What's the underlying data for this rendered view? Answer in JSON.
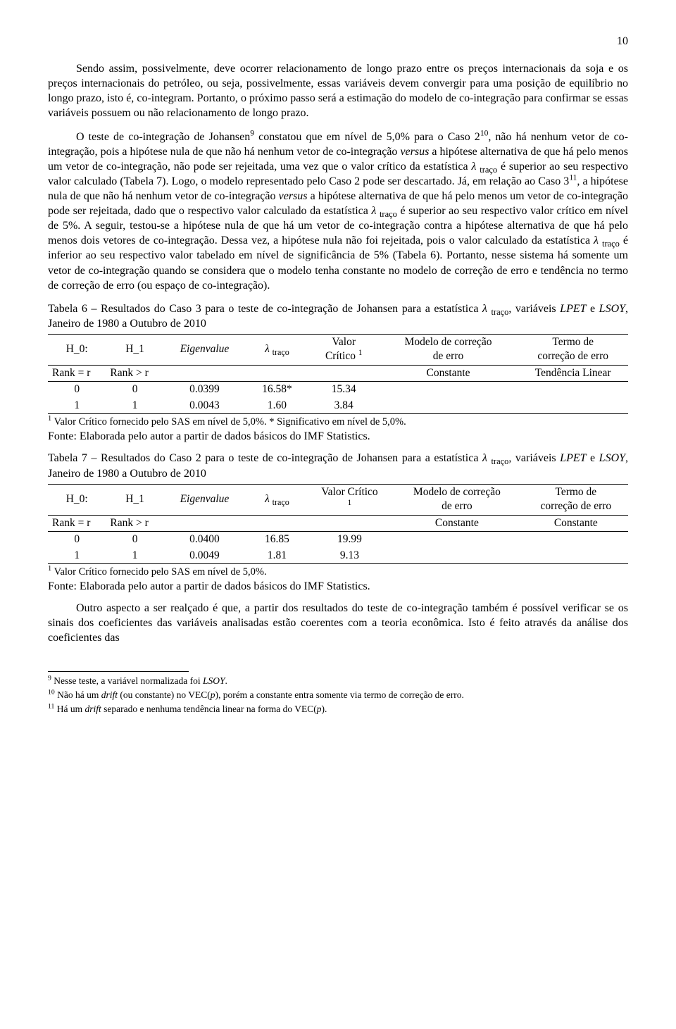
{
  "page_number": "10",
  "paragraphs": {
    "p1_html": "Sendo assim, possivelmente, deve ocorrer relacionamento de longo prazo entre os preços internacionais da soja e os preços internacionais do petróleo, ou seja, possivelmente, essas variáveis devem convergir para uma posição de equilíbrio no longo prazo, isto é, co-integram. Portanto, o próximo passo será a estimação do modelo de co-integração para confirmar se essas variáveis possuem ou não relacionamento de longo prazo.",
    "p2_html": "O teste de co-integração de Johansen<sup>9</sup> constatou que em nível de 5,0% para o Caso 2<sup>10</sup>, não há nenhum vetor de co-integração, pois a hipótese nula de que não há nenhum vetor de co-integração <span class=\"italic\">versus</span> a hipótese alternativa de que há pelo menos um vetor de co-integração, não pode ser rejeitada, uma vez que o valor crítico da estatística <span class=\"lambda\">&lambda;</span> <sub>traço</sub> é superior ao seu respectivo valor calculado (Tabela 7). Logo, o modelo representado pelo Caso 2 pode ser descartado. Já, em relação ao Caso 3<sup>11</sup>, a hipótese nula de que não há nenhum vetor de co-integração <span class=\"italic\">versus</span> a hipótese alternativa de que há pelo menos um vetor de co-integração pode ser rejeitada, dado que o respectivo valor calculado da estatística <span class=\"lambda\">&lambda;</span> <sub>traço</sub> é superior ao seu respectivo valor crítico em nível de 5%. A seguir, testou-se a hipótese nula de que há um vetor de co-integração contra a hipótese alternativa de que há pelo menos dois vetores de co-integração. Dessa vez, a hipótese nula não foi rejeitada, pois o valor calculado da estatística <span class=\"lambda\">&lambda;</span> <sub>traço</sub> é inferior ao seu respectivo valor tabelado em nível de significância de 5% (Tabela 6). Portanto, nesse sistema há somente um vetor de co-integração quando se considera que o modelo tenha constante no modelo de correção de erro e tendência no termo de correção de erro (ou espaço de co-integração).",
    "p3_html": "Outro aspecto a ser realçado é que, a partir dos resultados do teste de co-integração também é possível verificar se os sinais dos coeficientes das variáveis analisadas estão coerentes com a teoria econômica. Isto é feito através da análise dos coeficientes das"
  },
  "table6": {
    "title_html": "Tabela 6 &ndash; Resultados do Caso 3 para o teste de co-integração de Johansen para a estatística <span class=\"lambda\">&lambda;</span> <sub>traço</sub>, variáveis <span class=\"italic\">LPET</span> e <span class=\"italic\">LSOY</span>, Janeiro de 1980 a Outubro de 2010",
    "headers": {
      "h0": "H_0:",
      "h1": "H_1",
      "eigen_html": "<span class=\"italic\">Eigenvalue</span>",
      "lambda_html": "<span class=\"lambda\">&lambda;</span> <sub>traço</sub>",
      "valor_html": "Valor<br>Crítico <sup>1</sup>",
      "modelo_html": "Modelo de correção<br>de erro",
      "termo_html": "Termo de<br>correção de erro"
    },
    "rank_row": {
      "h0": "Rank = r",
      "h1": "Rank > r",
      "modelo": "Constante",
      "termo": "Tendência Linear"
    },
    "rows": [
      {
        "c0": "0",
        "c1": "0",
        "eigen": "0.0399",
        "lambda": "16.58*",
        "valor": "15.34"
      },
      {
        "c0": "1",
        "c1": "1",
        "eigen": "0.0043",
        "lambda": "1.60",
        "valor": "3.84"
      }
    ],
    "footnote_html": "<sup>1</sup> Valor Crítico fornecido pelo SAS em nível de 5,0%. * Significativo em nível de 5,0%.",
    "source": "Fonte: Elaborada pelo autor a partir de dados básicos do IMF Statistics."
  },
  "table7": {
    "title_html": "Tabela 7 &ndash; Resultados do Caso 2 para o teste de co-integração de Johansen para a estatística <span class=\"lambda\">&lambda;</span> <sub>traço</sub>, variáveis <span class=\"italic\">LPET</span> e <span class=\"italic\">LSOY</span>, Janeiro de 1980 a Outubro de 2010",
    "headers": {
      "h0": "H_0:",
      "h1": "H_1",
      "eigen_html": "<span class=\"italic\">Eigenvalue</span>",
      "lambda_html": "<span class=\"lambda\">&lambda;</span> <sub>traço</sub>",
      "valor_html": "Valor Crítico<br><sup>1</sup>",
      "modelo_html": "Modelo de correção<br>de erro",
      "termo_html": "Termo de<br>correção de erro"
    },
    "rank_row": {
      "h0": "Rank = r",
      "h1": "Rank > r",
      "modelo": "Constante",
      "termo": "Constante"
    },
    "rows": [
      {
        "c0": "0",
        "c1": "0",
        "eigen": "0.0400",
        "lambda": "16.85",
        "valor": "19.99"
      },
      {
        "c0": "1",
        "c1": "1",
        "eigen": "0.0049",
        "lambda": "1.81",
        "valor": "9.13"
      }
    ],
    "footnote_html": "<sup>1</sup> Valor Crítico fornecido pelo SAS em nível de 5,0%.",
    "source": "Fonte: Elaborada pelo autor a partir de dados básicos do IMF Statistics."
  },
  "footnotes": {
    "f9_html": "<sup>9</sup> Nesse teste, a variável normalizada foi <span class=\"italic\">LSOY</span>.",
    "f10_html": "<sup>10</sup> Não há um <span class=\"italic\">drift</span> (ou constante) no VEC(<span class=\"italic\">p</span>), porém a constante entra somente via termo de correção de erro.",
    "f11_html": "<sup>11</sup> Há um <span class=\"italic\">drift</span> separado e nenhuma tendência linear na forma do VEC(<span class=\"italic\">p</span>)."
  },
  "col_widths": {
    "t6": [
      "10%",
      "10%",
      "14%",
      "11%",
      "12%",
      "24%",
      "19%"
    ],
    "t7": [
      "10%",
      "10%",
      "14%",
      "11%",
      "14%",
      "23%",
      "18%"
    ]
  }
}
